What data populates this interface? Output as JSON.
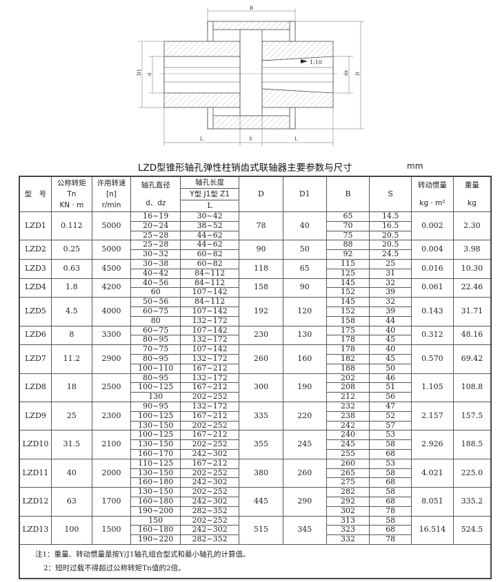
{
  "drawing": {
    "labels": {
      "B": "B",
      "D1": "D1",
      "d": "d",
      "dz": "dz",
      "D": "D",
      "L_left": "L",
      "S": "S",
      "L_right": "L",
      "taper": "1:10"
    }
  },
  "title": "LZD型锥形轴孔弹性柱销齿式联轴器主要参数与尺寸",
  "unit": "mm",
  "header": {
    "model": "型　号",
    "torque": [
      "公称转矩",
      "Tn",
      "KN · m"
    ],
    "speed": [
      "许用转速",
      "[n]",
      "r/min"
    ],
    "bore": [
      "轴孔直径",
      "d、dz"
    ],
    "length": "轴孔长度",
    "length_types": "Y型 J1型 Z1",
    "length_L": "L",
    "D": "D",
    "D1": "D1",
    "B": "B",
    "S": "S",
    "inertia": [
      "转动惯量",
      "kg · m²"
    ],
    "weight": [
      "重量",
      "kg"
    ]
  },
  "models": [
    {
      "model": "LZD1",
      "tn": "0.112",
      "n": "5000",
      "D": "78",
      "D1": "40",
      "inertia": "0.002",
      "weight": "2.30",
      "rows": [
        [
          "16~19",
          "30~42",
          "65",
          "14.5"
        ],
        [
          "20~24",
          "38~52",
          "70",
          "16.5"
        ],
        [
          "25~28",
          "44~62",
          "75",
          "20.5"
        ]
      ]
    },
    {
      "model": "LZD2",
      "tn": "0.25",
      "n": "5000",
      "D": "90",
      "D1": "50",
      "inertia": "0.004",
      "weight": "3.98",
      "rows": [
        [
          "25~28",
          "44~62",
          "88",
          "20.5"
        ],
        [
          "30~32",
          "60~82",
          "92",
          "24.5"
        ]
      ]
    },
    {
      "model": "LZD3",
      "tn": "0.63",
      "n": "4500",
      "D": "118",
      "D1": "65",
      "inertia": "0.016",
      "weight": "10.30",
      "rows": [
        [
          "30~38",
          "60~82",
          "115",
          "25"
        ],
        [
          "40~42",
          "84~112",
          "125",
          "31"
        ]
      ]
    },
    {
      "model": "LZD4",
      "tn": "1.8",
      "n": "4200",
      "D": "158",
      "D1": "90",
      "inertia": "0.061",
      "weight": "22.46",
      "rows": [
        [
          "40~56",
          "84~112",
          "145",
          "32"
        ],
        [
          "60",
          "107~142",
          "152",
          "39"
        ]
      ]
    },
    {
      "model": "LZD5",
      "tn": "4.5",
      "n": "4000",
      "D": "192",
      "D1": "120",
      "inertia": "0.143",
      "weight": "31.71",
      "rows": [
        [
          "50~56",
          "84~112",
          "145",
          "32"
        ],
        [
          "60~75",
          "107~142",
          "152",
          "39"
        ],
        [
          "80",
          "132~172",
          "158",
          "44"
        ]
      ]
    },
    {
      "model": "LZD6",
      "tn": "8",
      "n": "3300",
      "D": "230",
      "D1": "130",
      "inertia": "0.312",
      "weight": "48.16",
      "rows": [
        [
          "60~75",
          "107~142",
          "175",
          "40"
        ],
        [
          "80~95",
          "132~172",
          "178",
          "45"
        ]
      ]
    },
    {
      "model": "LZD7",
      "tn": "11.2",
      "n": "2900",
      "D": "260",
      "D1": "160",
      "inertia": "0.570",
      "weight": "69.42",
      "rows": [
        [
          "70~75",
          "107~142",
          "178",
          "40"
        ],
        [
          "80~95",
          "132~172",
          "182",
          "45"
        ],
        [
          "100~110",
          "167~212",
          "188",
          "50"
        ]
      ]
    },
    {
      "model": "LZD8",
      "tn": "18",
      "n": "2500",
      "D": "300",
      "D1": "190",
      "inertia": "1.105",
      "weight": "108.8",
      "rows": [
        [
          "80~95",
          "132~172",
          "202",
          "46"
        ],
        [
          "100~125",
          "167~212",
          "208",
          "51"
        ],
        [
          "130",
          "202~252",
          "212",
          "56"
        ]
      ]
    },
    {
      "model": "LZD9",
      "tn": "25",
      "n": "2300",
      "D": "335",
      "D1": "220",
      "inertia": "2.157",
      "weight": "157.5",
      "rows": [
        [
          "90~95",
          "132~172",
          "232",
          "47"
        ],
        [
          "100~125",
          "167~212",
          "238",
          "52"
        ],
        [
          "130~150",
          "202~252",
          "242",
          "57"
        ]
      ]
    },
    {
      "model": "LZD10",
      "tn": "31.5",
      "n": "2100",
      "D": "355",
      "D1": "245",
      "inertia": "2.926",
      "weight": "188.5",
      "rows": [
        [
          "100~125",
          "167~212",
          "240",
          "53"
        ],
        [
          "130~150",
          "202~252",
          "245",
          "58"
        ],
        [
          "160~170",
          "242~302",
          "255",
          "68"
        ]
      ]
    },
    {
      "model": "LZD11",
      "tn": "40",
      "n": "2000",
      "D": "380",
      "D1": "260",
      "inertia": "4.021",
      "weight": "225.0",
      "rows": [
        [
          "110~125",
          "167~212",
          "260",
          "53"
        ],
        [
          "130~150",
          "202~252",
          "265",
          "58"
        ],
        [
          "160~180",
          "242~302",
          "275",
          "68"
        ]
      ]
    },
    {
      "model": "LZD12",
      "tn": "63",
      "n": "1700",
      "D": "445",
      "D1": "290",
      "inertia": "8.051",
      "weight": "335.2",
      "rows": [
        [
          "130~150",
          "202~252",
          "282",
          "58"
        ],
        [
          "160~180",
          "242~302",
          "292",
          "68"
        ],
        [
          "190~200",
          "282~352",
          "302",
          "78"
        ]
      ]
    },
    {
      "model": "LZD13",
      "tn": "100",
      "n": "1500",
      "D": "515",
      "D1": "345",
      "inertia": "16.514",
      "weight": "524.5",
      "rows": [
        [
          "150",
          "202~252",
          "313",
          "58"
        ],
        [
          "160~180",
          "242~302",
          "323",
          "68"
        ],
        [
          "190~220",
          "282~352",
          "332",
          "78"
        ]
      ]
    }
  ],
  "notes": [
    "注1：重量、转动惯量是按Y/J1轴孔组合型式和最小轴孔的计算值。",
    "2：短时过载不得超过公称转矩Tn值的2倍。"
  ]
}
